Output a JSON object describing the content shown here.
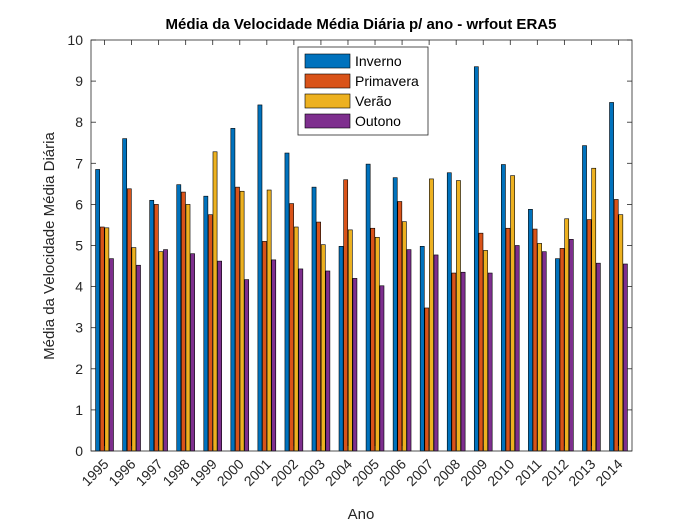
{
  "chart_data": {
    "type": "bar",
    "title": "Média da Velocidade Média Diária p/ ano - wrfout ERA5",
    "xlabel": "Ano",
    "ylabel": "Média da Velocidade Média Diária",
    "ylim": [
      0,
      10
    ],
    "yticks": [
      "0",
      "1",
      "2",
      "3",
      "4",
      "5",
      "6",
      "7",
      "8",
      "9",
      "10"
    ],
    "legend_position": "top-center",
    "grid": false,
    "categories": [
      "1995",
      "1996",
      "1997",
      "1998",
      "1999",
      "2000",
      "2001",
      "2002",
      "2003",
      "2004",
      "2005",
      "2006",
      "2007",
      "2008",
      "2009",
      "2010",
      "2011",
      "2012",
      "2013",
      "2014"
    ],
    "series": [
      {
        "name": "Inverno",
        "color": "#0072BD",
        "values": [
          6.85,
          7.6,
          6.1,
          6.48,
          6.2,
          7.85,
          8.42,
          7.25,
          6.42,
          4.98,
          6.98,
          6.65,
          4.98,
          6.77,
          9.35,
          6.97,
          5.88,
          4.68,
          7.43,
          8.48
        ]
      },
      {
        "name": "Primavera",
        "color": "#D95319",
        "values": [
          5.45,
          6.38,
          6.0,
          6.3,
          5.75,
          6.42,
          5.1,
          6.02,
          5.57,
          6.6,
          5.42,
          6.07,
          3.48,
          4.33,
          5.3,
          5.42,
          5.4,
          4.93,
          5.63,
          6.12
        ]
      },
      {
        "name": "Verão",
        "color": "#EDB120",
        "values": [
          5.43,
          4.95,
          4.85,
          6.0,
          7.28,
          6.32,
          6.35,
          5.45,
          5.02,
          5.38,
          5.2,
          5.58,
          6.62,
          6.58,
          4.88,
          6.7,
          5.05,
          5.65,
          6.88,
          5.75
        ]
      },
      {
        "name": "Outono",
        "color": "#7E2F8E",
        "values": [
          4.68,
          4.52,
          4.9,
          4.8,
          4.62,
          4.17,
          4.65,
          4.43,
          4.38,
          4.2,
          4.02,
          4.9,
          4.77,
          4.35,
          4.33,
          5.0,
          4.85,
          5.15,
          4.57,
          4.55
        ]
      }
    ]
  }
}
